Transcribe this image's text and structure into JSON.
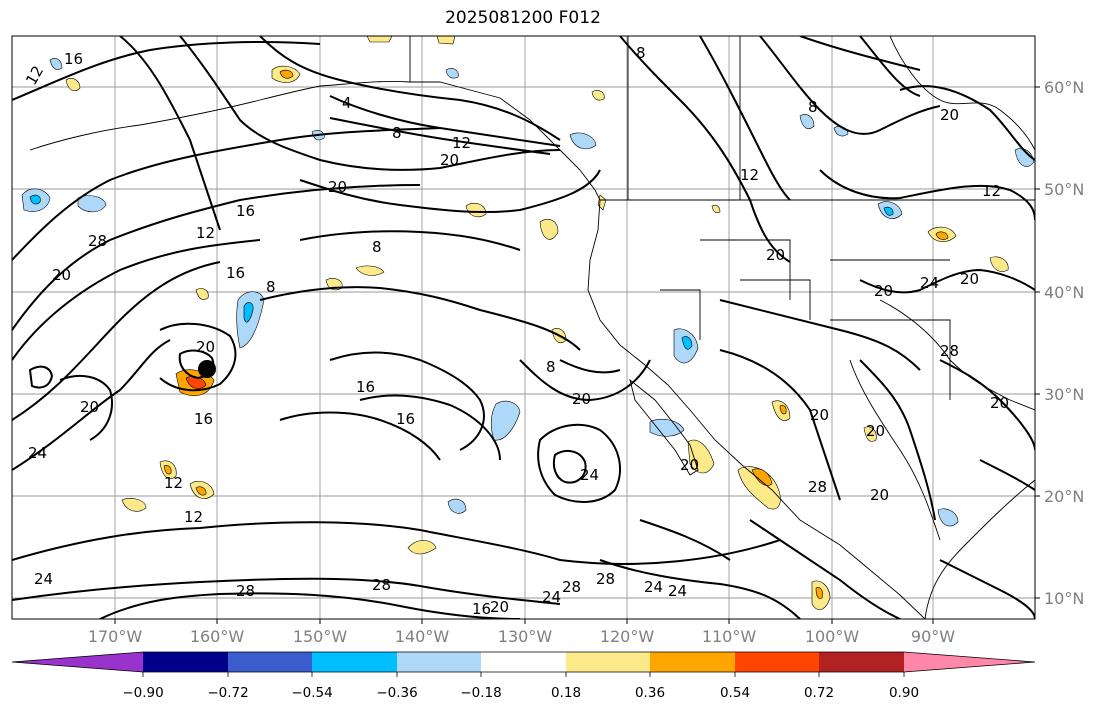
{
  "title": "2025081200 F012",
  "map": {
    "lat_labels": [
      "60°N",
      "50°N",
      "40°N",
      "30°N",
      "20°N",
      "10°N"
    ],
    "lon_labels": [
      "170°W",
      "160°W",
      "150°W",
      "140°W",
      "130°W",
      "120°W",
      "110°W",
      "100°W",
      "90°W"
    ],
    "contour_labels": [
      "12",
      "16",
      "8",
      "4",
      "8",
      "12",
      "20",
      "20",
      "16",
      "12",
      "16",
      "28",
      "20",
      "8",
      "8",
      "20",
      "16",
      "16",
      "8",
      "20",
      "20",
      "24",
      "12",
      "12",
      "24",
      "20",
      "8",
      "12",
      "20",
      "20",
      "24",
      "20",
      "28",
      "20",
      "28",
      "20",
      "20",
      "28",
      "20",
      "28",
      "24",
      "28",
      "28",
      "24",
      "24",
      "20",
      "16",
      "20",
      "16",
      "12",
      "24"
    ],
    "storm_marker": "tropical-cyclone-position"
  },
  "colorbar": {
    "tick_labels": [
      "−0.90",
      "−0.72",
      "−0.54",
      "−0.36",
      "−0.18",
      "0.18",
      "0.36",
      "0.54",
      "0.72",
      "0.90"
    ],
    "colors": [
      "#9a32cd",
      "#00008b",
      "#3a5ccc",
      "#00bfff",
      "#add8f7",
      "#ffffff",
      "#fce98a",
      "#ffa500",
      "#ff4500",
      "#b22222",
      "#ff88aa"
    ]
  }
}
